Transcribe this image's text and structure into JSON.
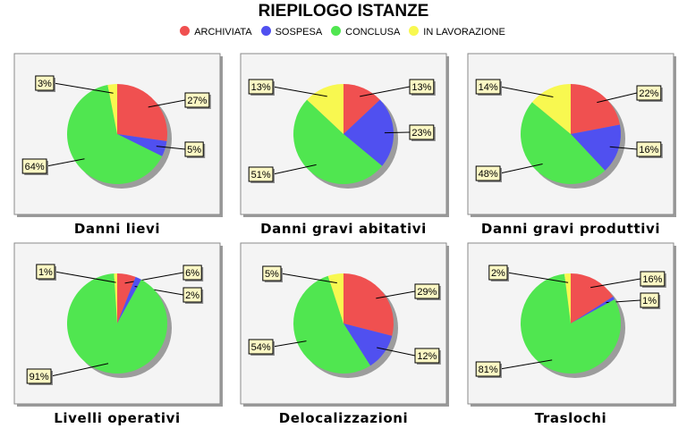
{
  "title": "RIEPILOGO ISTANZE",
  "legend": [
    {
      "label": "ARCHIVIATA",
      "color": "#f05050"
    },
    {
      "label": "SOSPESA",
      "color": "#5050f0"
    },
    {
      "label": "CONCLUSA",
      "color": "#50e650"
    },
    {
      "label": "IN LAVORAZIONE",
      "color": "#f8f850"
    }
  ],
  "chart_data": [
    {
      "type": "pie",
      "title": "Danni lievi",
      "slices": [
        {
          "label": "ARCHIVIATA",
          "value": 27,
          "text": "27%"
        },
        {
          "label": "SOSPESA",
          "value": 5,
          "text": "5%"
        },
        {
          "label": "CONCLUSA",
          "value": 64,
          "text": "64%"
        },
        {
          "label": "IN LAVORAZIONE",
          "value": 3,
          "text": "3%"
        }
      ]
    },
    {
      "type": "pie",
      "title": "Danni gravi abitativi",
      "slices": [
        {
          "label": "ARCHIVIATA",
          "value": 13,
          "text": "13%"
        },
        {
          "label": "SOSPESA",
          "value": 23,
          "text": "23%"
        },
        {
          "label": "CONCLUSA",
          "value": 51,
          "text": "51%"
        },
        {
          "label": "IN LAVORAZIONE",
          "value": 13,
          "text": "13%"
        }
      ]
    },
    {
      "type": "pie",
      "title": "Danni gravi produttivi",
      "slices": [
        {
          "label": "ARCHIVIATA",
          "value": 22,
          "text": "22%"
        },
        {
          "label": "SOSPESA",
          "value": 16,
          "text": "16%"
        },
        {
          "label": "CONCLUSA",
          "value": 48,
          "text": "48%"
        },
        {
          "label": "IN LAVORAZIONE",
          "value": 14,
          "text": "14%"
        }
      ]
    },
    {
      "type": "pie",
      "title": "Livelli operativi",
      "slices": [
        {
          "label": "ARCHIVIATA",
          "value": 6,
          "text": "6%"
        },
        {
          "label": "SOSPESA",
          "value": 2,
          "text": "2%"
        },
        {
          "label": "CONCLUSA",
          "value": 91,
          "text": "91%"
        },
        {
          "label": "IN LAVORAZIONE",
          "value": 1,
          "text": "1%"
        }
      ]
    },
    {
      "type": "pie",
      "title": "Delocalizzazioni",
      "slices": [
        {
          "label": "ARCHIVIATA",
          "value": 29,
          "text": "29%"
        },
        {
          "label": "SOSPESA",
          "value": 12,
          "text": "12%"
        },
        {
          "label": "CONCLUSA",
          "value": 54,
          "text": "54%"
        },
        {
          "label": "IN LAVORAZIONE",
          "value": 5,
          "text": "5%"
        }
      ]
    },
    {
      "type": "pie",
      "title": "Traslochi",
      "slices": [
        {
          "label": "ARCHIVIATA",
          "value": 16,
          "text": "16%"
        },
        {
          "label": "SOSPESA",
          "value": 1,
          "text": "1%"
        },
        {
          "label": "CONCLUSA",
          "value": 81,
          "text": "81%"
        },
        {
          "label": "IN LAVORAZIONE",
          "value": 2,
          "text": "2%"
        }
      ]
    }
  ]
}
